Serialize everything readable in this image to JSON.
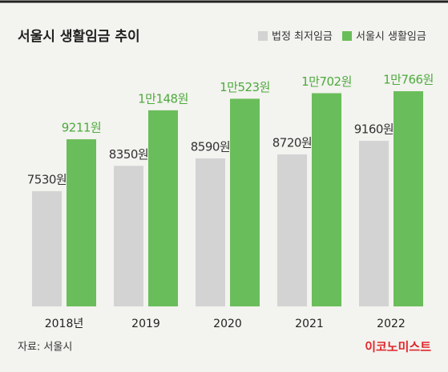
{
  "chart_data": {
    "type": "bar",
    "title": "서울시 생활임금 추이",
    "categories": [
      "2018년",
      "2019",
      "2020",
      "2021",
      "2022"
    ],
    "series": [
      {
        "name": "법정 최저임금",
        "color": "#d3d3d3",
        "label_color": "#333333",
        "values": [
          7530,
          8350,
          8590,
          8720,
          9160
        ],
        "value_labels": [
          "7530원",
          "8350원",
          "8590원",
          "8720원",
          "9160원"
        ]
      },
      {
        "name": "서울시 생활임금",
        "color": "#6abd5b",
        "label_color": "#4eaa3e",
        "values": [
          9211,
          10148,
          10523,
          10702,
          10766
        ],
        "value_labels": [
          "9211원",
          "1만148원",
          "1만523원",
          "1만702원",
          "1만766원"
        ]
      }
    ],
    "ylim": [
      3800,
      11000
    ],
    "source": "자료: 서울시",
    "publisher": "이코노미스트"
  }
}
